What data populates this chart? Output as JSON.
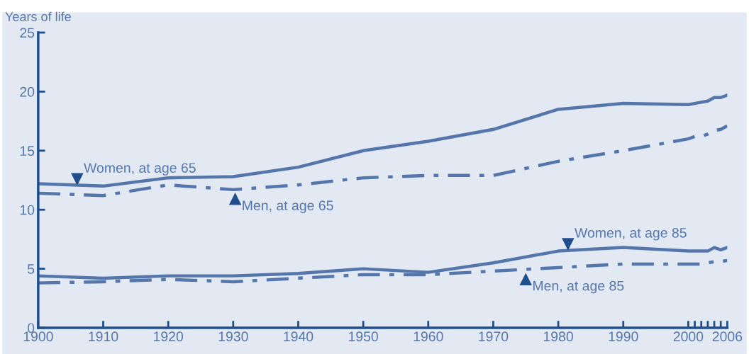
{
  "chart_data": {
    "type": "line",
    "ylabel": "Years of life",
    "x": [
      1900,
      1910,
      1920,
      1930,
      1940,
      1950,
      1960,
      1970,
      1980,
      1990,
      2000,
      2001,
      2002,
      2003,
      2004,
      2005,
      2006
    ],
    "series": [
      {
        "color": "#5576aa",
        "line_style": "solid",
        "values": [
          12.2,
          12.0,
          12.7,
          12.8,
          13.6,
          15.0,
          15.8,
          16.8,
          18.5,
          19.0,
          18.9,
          19.0,
          19.1,
          19.2,
          19.5,
          19.5,
          19.7
        ]
      },
      {
        "color": "#5576aa",
        "line_style": "dashed",
        "values": [
          11.4,
          11.2,
          12.1,
          11.7,
          12.1,
          12.7,
          12.9,
          12.9,
          14.1,
          15.0,
          16.0,
          16.2,
          16.2,
          16.4,
          16.7,
          16.8,
          17.1
        ]
      },
      {
        "color": "#5576aa",
        "line_style": "solid",
        "values": [
          4.4,
          4.2,
          4.4,
          4.4,
          4.6,
          5.0,
          4.7,
          5.5,
          6.5,
          6.8,
          6.5,
          6.5,
          6.5,
          6.5,
          6.8,
          6.6,
          6.8
        ]
      },
      {
        "color": "#5576aa",
        "line_style": "dashed",
        "values": [
          3.8,
          3.9,
          4.1,
          3.9,
          4.2,
          4.5,
          4.5,
          4.8,
          5.1,
          5.4,
          5.4,
          5.4,
          5.4,
          5.5,
          5.6,
          5.6,
          5.7
        ]
      }
    ],
    "xlim": [
      1900,
      2006
    ],
    "ylim": [
      0,
      25
    ],
    "xticks": [
      1900,
      1910,
      1920,
      1930,
      1940,
      1950,
      1960,
      1970,
      1980,
      1990,
      2000,
      {
        "value": 2001,
        "label": null
      },
      {
        "value": 2002,
        "label": null
      },
      {
        "value": 2003,
        "label": null
      },
      {
        "value": 2004,
        "label": null
      },
      {
        "value": 2005,
        "label": null
      },
      2006
    ],
    "yticks": [
      0,
      5,
      10,
      15,
      20,
      25
    ],
    "grid": false,
    "marker": "none",
    "annotations": [
      {
        "text": "Women, at age 65",
        "x": 1906,
        "y": 12.6
      },
      {
        "text": "Men, at age 65",
        "x": 1930.3,
        "y": 10.9
      },
      {
        "text": "Women, at age 85",
        "x": 1981.5,
        "y": 7.1
      },
      {
        "text": "Men, at age 85",
        "x": 1975,
        "y": 4.1
      }
    ]
  }
}
